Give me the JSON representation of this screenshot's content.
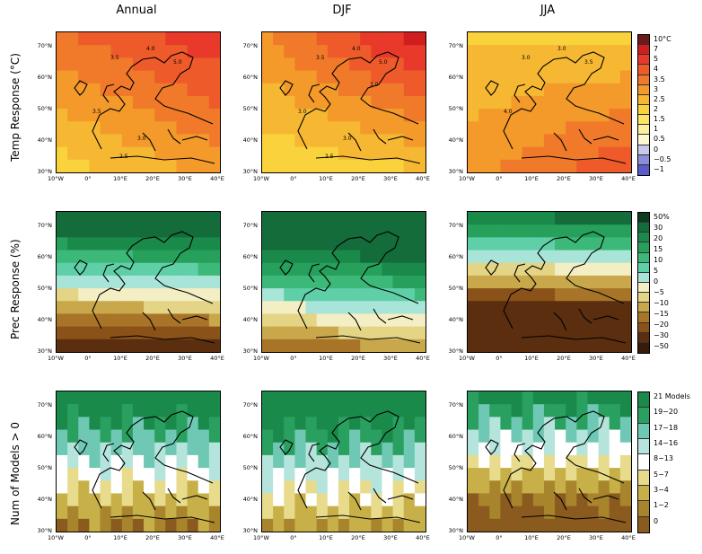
{
  "columns": [
    "Annual",
    "DJF",
    "JJA"
  ],
  "rows": [
    "Temp Response (°C)",
    "Prec Response (%)",
    "Num of Models > 0"
  ],
  "lat_labels": [
    "70°N",
    "60°N",
    "50°N",
    "40°N",
    "30°N"
  ],
  "lon_labels": [
    "10°W",
    "0°",
    "10°E",
    "20°E",
    "30°E",
    "40°E"
  ],
  "contour_labels": {
    "annual": [
      "3.5",
      "4.0",
      "5.0",
      "3.5",
      "3.0",
      "2.5"
    ],
    "djf": [
      "3.5",
      "4.0",
      "5.0",
      "3.0",
      "3.0",
      "2.5",
      "3.0"
    ],
    "jja": [
      "3.0",
      "3.0",
      "3.5",
      "4.0"
    ]
  },
  "legends": {
    "temp": {
      "labels": [
        "10°C",
        "7",
        "5",
        "4",
        "3.5",
        "3",
        "2.5",
        "2",
        "1.5",
        "1",
        "0.5",
        "0",
        "−0.5",
        "−1"
      ],
      "colors": [
        "#6e1a1a",
        "#d01e1e",
        "#e8392a",
        "#ee5a2a",
        "#f07a2a",
        "#f39a2a",
        "#f6b832",
        "#f9d23c",
        "#fbe466",
        "#fcf0a0",
        "#fdf8d0",
        "#c8c8e8",
        "#8c8cd8",
        "#5a5ac8"
      ]
    },
    "prec": {
      "labels": [
        "50%",
        "30",
        "20",
        "15",
        "10",
        "5",
        "0",
        "−5",
        "−10",
        "−15",
        "−20",
        "−30",
        "−50"
      ],
      "colors": [
        "#0e3a1e",
        "#146c3a",
        "#1a8a4a",
        "#26a05a",
        "#3cb878",
        "#5fcfa8",
        "#a8e4d8",
        "#f4eec4",
        "#e4d486",
        "#c8a84a",
        "#a87428",
        "#8a5218",
        "#5a2e0e",
        "#3a1a08"
      ]
    },
    "models": {
      "labels": [
        "21 Models",
        "19−20",
        "17−18",
        "14−16",
        "8−13",
        "5−7",
        "3−4",
        "1−2",
        "0"
      ],
      "colors": [
        "#1a8a4a",
        "#2aa060",
        "#6fc8b4",
        "#b4e4dc",
        "#ffffff",
        "#e8dc8c",
        "#c8b048",
        "#a8842c",
        "#8a5a1e"
      ]
    }
  }
}
